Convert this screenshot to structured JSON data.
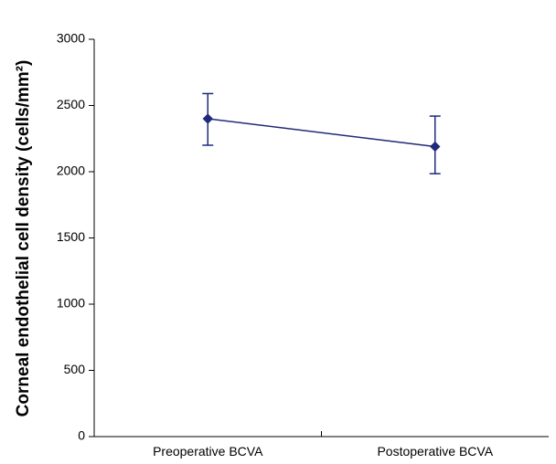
{
  "chart_data": {
    "type": "line",
    "title": "",
    "xlabel": "",
    "ylabel": "Corneal endothelial cell density (cells/mm²)",
    "categories": [
      "Preoperative BCVA",
      "Postoperative BCVA"
    ],
    "ylim": [
      0,
      3000
    ],
    "yticks": [
      0,
      500,
      1000,
      1500,
      2000,
      2500,
      3000
    ],
    "grid": false,
    "legend": "none",
    "series": [
      {
        "values": [
          2400,
          2190
        ],
        "error_upper": [
          2590,
          2420
        ],
        "error_lower": [
          2200,
          1985
        ],
        "color": "#1f2a7a",
        "marker": "diamond"
      }
    ]
  }
}
